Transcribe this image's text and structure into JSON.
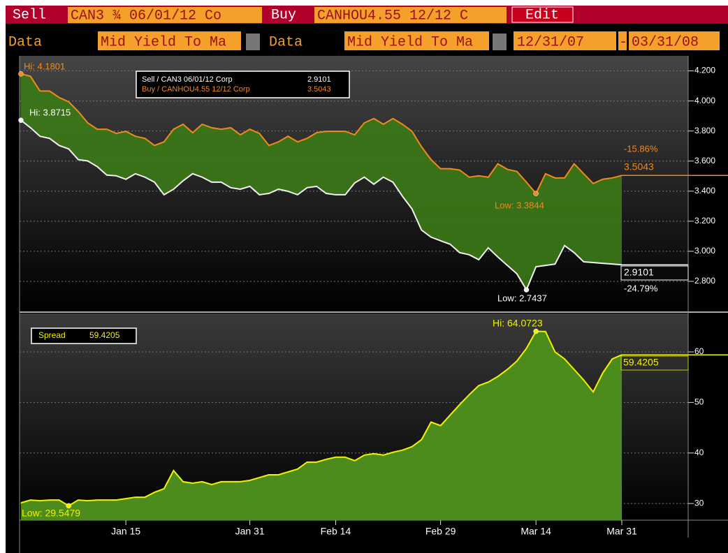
{
  "toolbar": {
    "row1": [
      "Sell",
      "CAN3 ¾ 06/01/12 Co",
      "Buy",
      "CANHOU4.55 12/12 C",
      "Edit"
    ],
    "row2": [
      "Data",
      "Mid Yield To Ma",
      "Data",
      "Mid Yield To Ma",
      "12/31/07",
      "-",
      "03/31/08"
    ]
  },
  "chart_data": [
    {
      "type": "line",
      "fill_between": true,
      "fill_color": "#3b7a16",
      "ylim": [
        2.6,
        4.3
      ],
      "yticks": [
        {
          "value": 2.8,
          "label": "2.800"
        },
        {
          "value": 3.0,
          "label": "3.000"
        },
        {
          "value": 3.2,
          "label": "3.200"
        },
        {
          "value": 3.4,
          "label": "3.400"
        },
        {
          "value": 3.6,
          "label": "3.600"
        },
        {
          "value": 3.8,
          "label": "3.800"
        },
        {
          "value": 4.0,
          "label": "4.000"
        },
        {
          "value": 4.2,
          "label": "4.200"
        }
      ],
      "grid": true,
      "annotations": [
        "Hi: 4.1801",
        "Hi: 3.8715",
        "Low: 3.3844",
        "Low: 2.7437",
        "-15.86%",
        "-24.79%"
      ],
      "series": [
        {
          "name": "Buy / CANHOU4.55 12/12 Corp",
          "color": "#f08a1c",
          "values": [
            4.1801,
            4.164,
            4.066,
            4.066,
            4.023,
            3.995,
            3.93,
            3.854,
            3.812,
            3.812,
            3.784,
            3.798,
            3.765,
            3.751,
            3.704,
            3.728,
            3.812,
            3.845,
            3.789,
            3.845,
            3.822,
            3.812,
            3.822,
            3.775,
            3.812,
            3.784,
            3.704,
            3.728,
            3.765,
            3.728,
            3.751,
            3.789,
            3.798,
            3.798,
            3.798,
            3.775,
            3.854,
            3.883,
            3.845,
            3.883,
            3.845,
            3.798,
            3.695,
            3.61,
            3.549,
            3.549,
            3.54,
            3.493,
            3.502,
            3.493,
            3.582,
            3.545,
            3.531,
            3.46,
            3.3844,
            3.516,
            3.488,
            3.488,
            3.582,
            3.516,
            3.451,
            3.479,
            3.488,
            3.5043
          ]
        },
        {
          "name": "Sell / CAN3 06/01/12 Corp",
          "color": "#f2f2f2",
          "values": [
            3.8715,
            3.822,
            3.765,
            3.751,
            3.704,
            3.681,
            3.61,
            3.601,
            3.563,
            3.507,
            3.502,
            3.479,
            3.516,
            3.493,
            3.46,
            3.376,
            3.413,
            3.469,
            3.516,
            3.493,
            3.46,
            3.46,
            3.423,
            3.413,
            3.432,
            3.376,
            3.385,
            3.413,
            3.399,
            3.376,
            3.423,
            3.432,
            3.385,
            3.376,
            3.376,
            3.455,
            3.493,
            3.446,
            3.493,
            3.46,
            3.366,
            3.282,
            3.141,
            3.094,
            3.07,
            3.047,
            2.991,
            2.977,
            2.944,
            3.023,
            2.962,
            2.906,
            2.85,
            2.7437,
            2.897,
            2.906,
            2.915,
            3.038,
            2.991,
            2.93,
            2.925,
            2.92,
            2.915,
            2.9101
          ]
        }
      ]
    },
    {
      "type": "area",
      "fill_color": "#4c8c1c",
      "ylim": [
        26.7,
        67.6
      ],
      "yticks": [
        30,
        40,
        50,
        60
      ],
      "grid": true,
      "annotations": [
        "Hi: 64.0723",
        "Low: 29.5479"
      ],
      "categories": [
        null,
        null,
        null,
        null,
        null,
        null,
        null,
        null,
        null,
        null,
        null,
        "Jan 15",
        null,
        null,
        null,
        null,
        null,
        null,
        null,
        null,
        null,
        null,
        null,
        null,
        "Jan 31",
        null,
        null,
        null,
        null,
        null,
        null,
        null,
        null,
        "Feb 14",
        null,
        null,
        null,
        null,
        null,
        null,
        null,
        null,
        null,
        null,
        "Feb 29",
        null,
        null,
        null,
        null,
        null,
        null,
        null,
        null,
        null,
        "Mar 14",
        null,
        null,
        null,
        null,
        null,
        null,
        null,
        null,
        "Mar 31"
      ],
      "series": [
        {
          "name": "Spread",
          "color": "#f2f200",
          "values": [
            30.14,
            30.69,
            30.56,
            30.69,
            30.69,
            29.5479,
            30.69,
            30.56,
            30.69,
            30.69,
            30.69,
            30.97,
            31.25,
            31.25,
            32.22,
            32.92,
            36.53,
            34.31,
            34.03,
            34.31,
            33.75,
            34.31,
            34.31,
            34.31,
            34.58,
            35.14,
            35.69,
            35.69,
            36.25,
            36.81,
            38.19,
            38.19,
            38.75,
            39.17,
            39.17,
            38.47,
            39.58,
            39.86,
            39.58,
            40.14,
            40.56,
            41.25,
            42.64,
            46.11,
            45.42,
            47.5,
            49.58,
            51.53,
            53.33,
            54.03,
            55.14,
            56.53,
            58.19,
            60.69,
            64.0723,
            64.03,
            60.0,
            58.61,
            56.53,
            54.44,
            52.08,
            55.83,
            58.61,
            59.4205
          ]
        }
      ]
    }
  ]
}
